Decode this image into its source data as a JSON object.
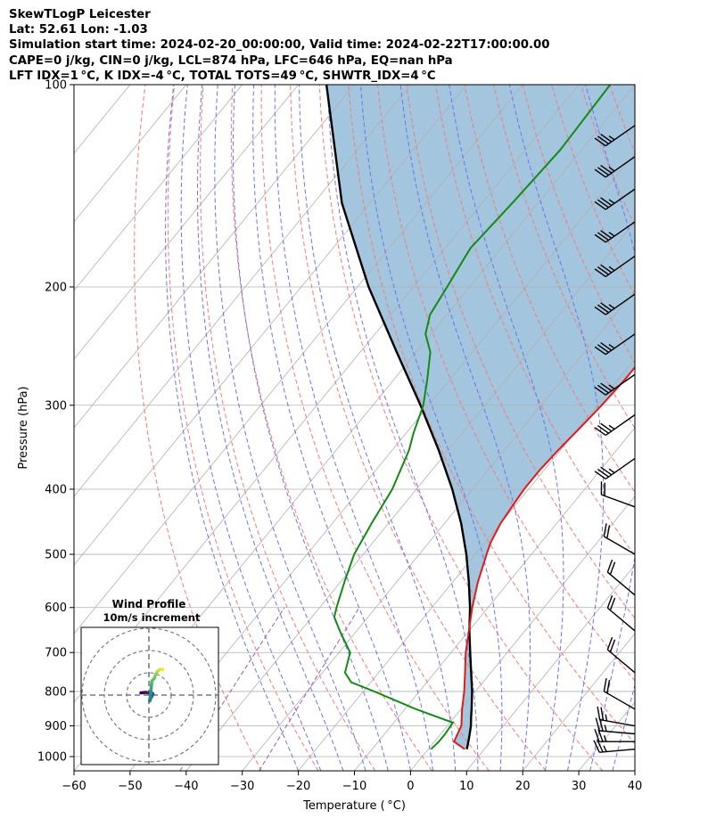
{
  "header": {
    "line1": "SkewTLogP Leicester",
    "line2": "Lat: 52.61   Lon: -1.03",
    "line3": "Simulation start time: 2024-02-20_00:00:00, Valid time: 2024-02-22T17:00:00.00",
    "line4": "CAPE=0 j/kg, CIN=0 j/kg, LCL=874 hPa, LFC=646 hPa, EQ=nan hPa",
    "line5": "LFT IDX=1 °C, K IDX=-4 °C, TOTAL TOTS=49 °C, SHWTR_IDX=4 °C"
  },
  "colors": {
    "temperature": "#e31a1c",
    "dewpoint": "#138a13",
    "parcel": "#000000",
    "shading": "#a3c5de",
    "dry_adiabat": "#f47a7a",
    "moist_adiabat": "#6b73ef",
    "mixing_ratio": "#9b59b6",
    "isotherm": "#b0b0b0"
  },
  "chart_data": [
    {
      "type": "line",
      "subtype": "skew-t log-p",
      "xlabel": "Temperature ( °C)",
      "ylabel": "Pressure (hPa)",
      "xlim": [
        -60,
        40
      ],
      "ylim": [
        1050,
        100
      ],
      "yscale": "log",
      "xticks": [
        -60,
        -50,
        -40,
        -30,
        -20,
        -10,
        0,
        10,
        20,
        30,
        40
      ],
      "xtick_labels": [
        "−60",
        "−50",
        "−40",
        "−30",
        "−20",
        "−10",
        "0",
        "10",
        "20",
        "30",
        "40"
      ],
      "yticks": [
        1000,
        900,
        800,
        700,
        600,
        500,
        400,
        300,
        200,
        100
      ],
      "ytick_labels": [
        "1000",
        "900",
        "800",
        "700",
        "600",
        "500",
        "400",
        "300",
        "200",
        "100"
      ],
      "grid": true,
      "series": [
        {
          "key": "temperature",
          "points": [
            [
              975,
              6.5
            ],
            [
              950,
              3.5
            ],
            [
              925,
              3.0
            ],
            [
              900,
              2.5
            ],
            [
              850,
              0.2
            ],
            [
              800,
              -2.0
            ],
            [
              750,
              -4.6
            ],
            [
              700,
              -7.4
            ],
            [
              650,
              -10.0
            ],
            [
              600,
              -12.8
            ],
            [
              550,
              -15.5
            ],
            [
              500,
              -18.0
            ],
            [
              480,
              -19.0
            ],
            [
              450,
              -20.0
            ],
            [
              425,
              -20.4
            ],
            [
              400,
              -20.8
            ],
            [
              375,
              -20.8
            ],
            [
              350,
              -20.4
            ],
            [
              325,
              -19.8
            ],
            [
              300,
              -19.2
            ],
            [
              275,
              -18.8
            ],
            [
              260,
              -18.8
            ],
            [
              240,
              -16.6
            ],
            [
              225,
              -14.6
            ],
            [
              200,
              -11.8
            ],
            [
              185,
              -9.4
            ],
            [
              170,
              -6.8
            ],
            [
              155,
              -4.0
            ],
            [
              140,
              -2.8
            ],
            [
              125,
              -1.3
            ],
            [
              110,
              0.0
            ],
            [
              100,
              1.0
            ]
          ]
        },
        {
          "key": "dewpoint",
          "points": [
            [
              975,
              0.5
            ],
            [
              950,
              0.8
            ],
            [
              925,
              0.8
            ],
            [
              890,
              0.5
            ],
            [
              850,
              -8.0
            ],
            [
              800,
              -18.0
            ],
            [
              775,
              -23.5
            ],
            [
              750,
              -26.0
            ],
            [
              700,
              -28.0
            ],
            [
              650,
              -33.0
            ],
            [
              620,
              -36.0
            ],
            [
              600,
              -37.0
            ],
            [
              550,
              -39.3
            ],
            [
              500,
              -41.6
            ],
            [
              450,
              -43.0
            ],
            [
              400,
              -44.3
            ],
            [
              350,
              -47.0
            ],
            [
              330,
              -48.7
            ],
            [
              300,
              -51.0
            ],
            [
              275,
              -54.0
            ],
            [
              250,
              -57.5
            ],
            [
              235,
              -61.0
            ],
            [
              220,
              -63.0
            ],
            [
              200,
              -64.0
            ],
            [
              180,
              -65.2
            ],
            [
              175,
              -65.5
            ],
            [
              150,
              -64.6
            ],
            [
              125,
              -63.8
            ],
            [
              100,
              -64.4
            ]
          ]
        },
        {
          "key": "parcel",
          "points": [
            [
              975,
              6.9
            ],
            [
              940,
              5.7
            ],
            [
              900,
              4.2
            ],
            [
              874,
              3.0
            ],
            [
              850,
              1.9
            ],
            [
              800,
              -0.6
            ],
            [
              750,
              -3.5
            ],
            [
              700,
              -6.6
            ],
            [
              650,
              -9.9
            ],
            [
              600,
              -13.2
            ],
            [
              550,
              -17.1
            ],
            [
              500,
              -21.6
            ],
            [
              450,
              -27.0
            ],
            [
              400,
              -33.6
            ],
            [
              350,
              -41.7
            ],
            [
              300,
              -51.5
            ],
            [
              250,
              -63.5
            ],
            [
              200,
              -78.0
            ],
            [
              150,
              -95.0
            ],
            [
              100,
              -115.0
            ]
          ]
        }
      ],
      "winds": [
        {
          "p": 975,
          "speed": 25,
          "dir": 265
        },
        {
          "p": 950,
          "speed": 25,
          "dir": 270
        },
        {
          "p": 925,
          "speed": 25,
          "dir": 275
        },
        {
          "p": 900,
          "speed": 25,
          "dir": 280
        },
        {
          "p": 850,
          "speed": 20,
          "dir": 300
        },
        {
          "p": 750,
          "speed": 20,
          "dir": 310
        },
        {
          "p": 650,
          "speed": 20,
          "dir": 310
        },
        {
          "p": 575,
          "speed": 20,
          "dir": 310
        },
        {
          "p": 500,
          "speed": 20,
          "dir": 300
        },
        {
          "p": 425,
          "speed": 20,
          "dir": 290
        },
        {
          "p": 360,
          "speed": 35,
          "dir": 235
        },
        {
          "p": 310,
          "speed": 35,
          "dir": 235
        },
        {
          "p": 270,
          "speed": 35,
          "dir": 235
        },
        {
          "p": 235,
          "speed": 35,
          "dir": 235
        },
        {
          "p": 205,
          "speed": 35,
          "dir": 235
        },
        {
          "p": 180,
          "speed": 35,
          "dir": 235
        },
        {
          "p": 160,
          "speed": 35,
          "dir": 235
        },
        {
          "p": 143,
          "speed": 35,
          "dir": 235
        },
        {
          "p": 128,
          "speed": 35,
          "dir": 235
        },
        {
          "p": 115,
          "speed": 35,
          "dir": 235
        }
      ]
    },
    {
      "type": "scatter",
      "subtype": "hodograph",
      "title": "Wind Profile",
      "subtitle": "10m/s increment",
      "points": [
        [
          -3.6,
          1.0
        ],
        [
          -1.5,
          1.2
        ],
        [
          0.0,
          1.0
        ],
        [
          1.2,
          1.0
        ],
        [
          1.8,
          0.5
        ],
        [
          1.3,
          -0.7
        ],
        [
          0.8,
          -1.4
        ],
        [
          0.4,
          -2.6
        ],
        [
          0.6,
          -1.0
        ],
        [
          0.8,
          1.0
        ],
        [
          1.0,
          3.0
        ],
        [
          1.2,
          5.0
        ],
        [
          1.3,
          6.3
        ],
        [
          2.4,
          7.5
        ],
        [
          3.0,
          9.2
        ],
        [
          3.8,
          10.5
        ],
        [
          4.5,
          11.3
        ],
        [
          5.7,
          11.7
        ],
        [
          6.3,
          11.4
        ]
      ]
    }
  ]
}
